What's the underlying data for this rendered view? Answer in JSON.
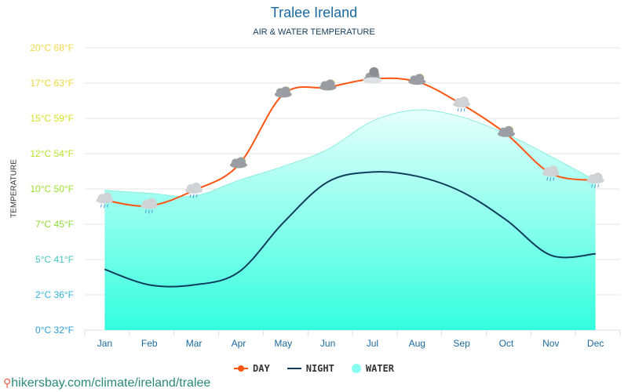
{
  "title": "Tralee Ireland",
  "subtitle": "AIR & WATER TEMPERATURE",
  "source": "hikersbay.com/climate/ireland/tralee",
  "chart_data": {
    "type": "line",
    "ylabel": "TEMPERATURE",
    "ylim": [
      0,
      20
    ],
    "yticks": [
      {
        "value": 0,
        "label": "0°C 32°F",
        "color": "#2a9fd8"
      },
      {
        "value": 2.5,
        "label": "2°C 36°F",
        "color": "#33b4d8"
      },
      {
        "value": 5,
        "label": "5°C 41°F",
        "color": "#44c6c0"
      },
      {
        "value": 7.5,
        "label": "7°C 45°F",
        "color": "#8edc3a"
      },
      {
        "value": 10,
        "label": "10°C 50°F",
        "color": "#9ee030"
      },
      {
        "value": 12.5,
        "label": "12°C 54°F",
        "color": "#b8e028"
      },
      {
        "value": 15,
        "label": "15°C 59°F",
        "color": "#d6e024"
      },
      {
        "value": 17.5,
        "label": "17°C 63°F",
        "color": "#eed83a"
      },
      {
        "value": 20,
        "label": "20°C 68°F",
        "color": "#f4d84a"
      }
    ],
    "grid": true,
    "legend_position": "bottom",
    "categories": [
      "Jan",
      "Feb",
      "Mar",
      "Apr",
      "May",
      "Jun",
      "Jul",
      "Aug",
      "Sep",
      "Oct",
      "Nov",
      "Dec"
    ],
    "series": [
      {
        "name": "DAY",
        "color": "#ff5511",
        "values": [
          9.2,
          8.8,
          9.9,
          11.7,
          16.7,
          17.2,
          17.8,
          17.6,
          16.0,
          13.9,
          11.1,
          10.6
        ]
      },
      {
        "name": "NIGHT",
        "color": "#0f3d5c",
        "values": [
          4.3,
          3.2,
          3.2,
          4.1,
          7.6,
          10.5,
          11.2,
          10.9,
          9.8,
          7.8,
          5.3,
          5.4
        ]
      },
      {
        "name": "WATER",
        "color": "#88fff0",
        "values": [
          9.9,
          9.7,
          9.5,
          10.6,
          11.6,
          12.8,
          14.8,
          15.6,
          15.1,
          13.9,
          12.3,
          10.6
        ]
      }
    ],
    "weather_icons": [
      "rain",
      "rain",
      "rain",
      "sun-cloud",
      "sun-cloud",
      "sun-cloud",
      "cloud",
      "sun-cloud",
      "rain",
      "sun-cloud",
      "rain",
      "rain"
    ]
  }
}
